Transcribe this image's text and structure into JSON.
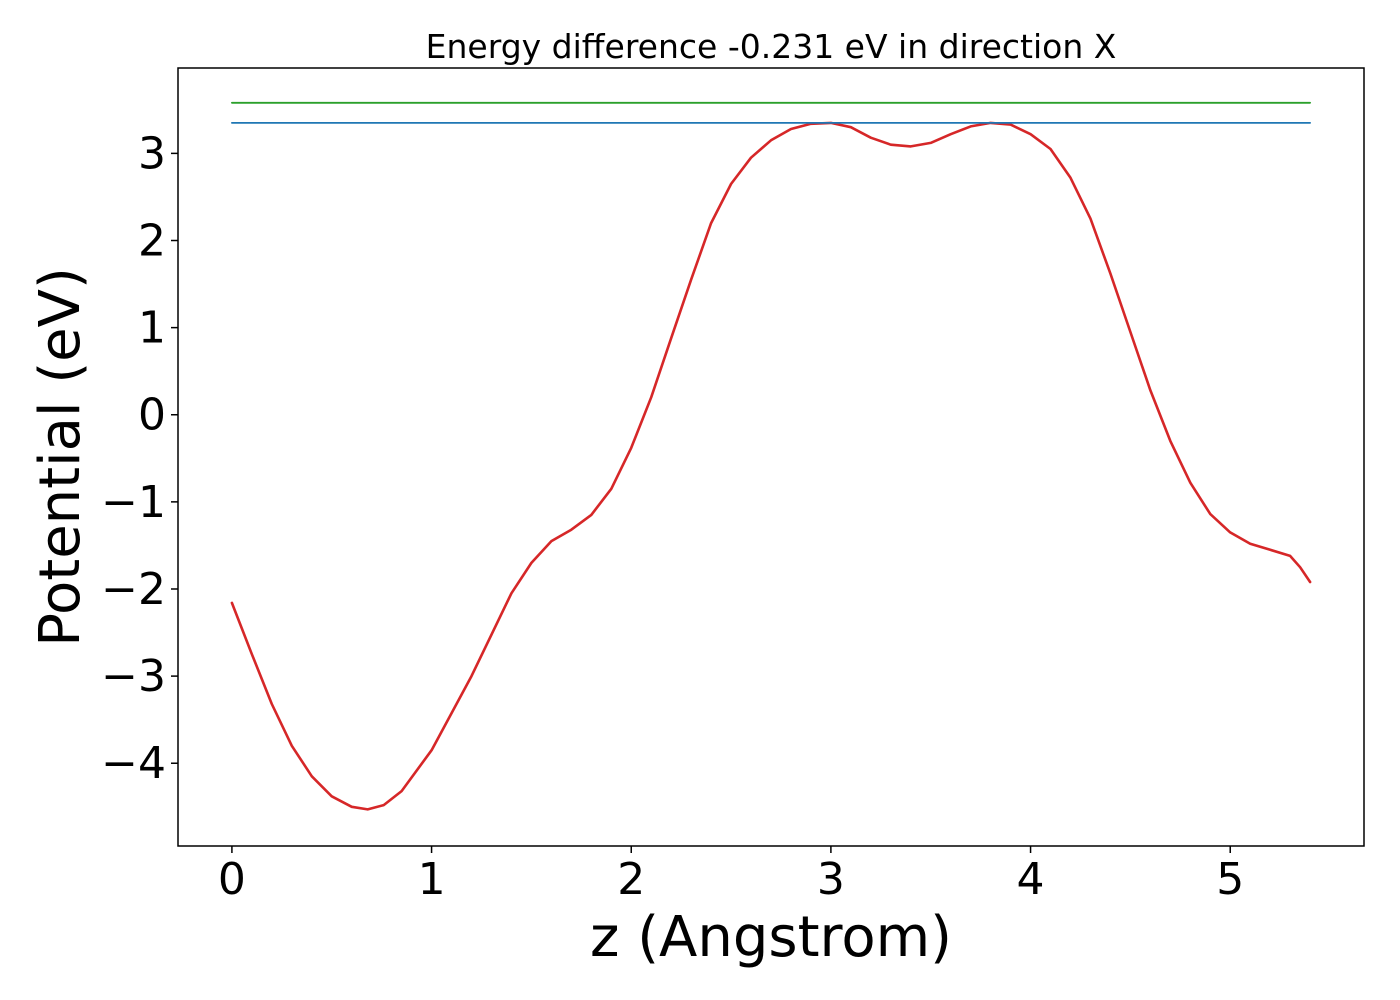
{
  "chart_data": {
    "type": "line",
    "title": "Energy difference -0.231 eV in direction X",
    "xlabel": "z (Angstrom)",
    "ylabel": "Potential (eV)",
    "xlim": [
      -0.27,
      5.67
    ],
    "ylim": [
      -4.95,
      3.98
    ],
    "xticks": [
      0,
      1,
      2,
      3,
      4,
      5
    ],
    "yticks": [
      -4,
      -3,
      -2,
      -1,
      0,
      1,
      2,
      3
    ],
    "grid": false,
    "legend": "none",
    "series": [
      {
        "color": "#d62728",
        "x": [
          0.0,
          0.1,
          0.2,
          0.3,
          0.4,
          0.5,
          0.6,
          0.68,
          0.76,
          0.85,
          1.0,
          1.2,
          1.4,
          1.5,
          1.6,
          1.7,
          1.8,
          1.9,
          2.0,
          2.1,
          2.2,
          2.3,
          2.4,
          2.5,
          2.6,
          2.7,
          2.8,
          2.9,
          3.0,
          3.1,
          3.2,
          3.3,
          3.4,
          3.5,
          3.6,
          3.7,
          3.8,
          3.9,
          4.0,
          4.1,
          4.2,
          4.3,
          4.4,
          4.5,
          4.6,
          4.7,
          4.8,
          4.9,
          5.0,
          5.1,
          5.2,
          5.3,
          5.35,
          5.4
        ],
        "y": [
          -2.16,
          -2.75,
          -3.32,
          -3.8,
          -4.15,
          -4.38,
          -4.5,
          -4.53,
          -4.48,
          -4.32,
          -3.85,
          -3.0,
          -2.05,
          -1.7,
          -1.45,
          -1.32,
          -1.15,
          -0.85,
          -0.38,
          0.2,
          0.88,
          1.55,
          2.2,
          2.65,
          2.95,
          3.15,
          3.28,
          3.34,
          3.35,
          3.3,
          3.18,
          3.1,
          3.08,
          3.12,
          3.22,
          3.31,
          3.35,
          3.33,
          3.22,
          3.05,
          2.72,
          2.25,
          1.62,
          0.95,
          0.28,
          -0.3,
          -0.78,
          -1.14,
          -1.35,
          -1.48,
          -1.55,
          -1.62,
          -1.75,
          -1.92
        ]
      },
      {
        "color": "#1f77b4",
        "x": [
          0.0,
          5.4
        ],
        "y": [
          3.35,
          3.35
        ]
      },
      {
        "color": "#2ca02c",
        "x": [
          0.0,
          5.4
        ],
        "y": [
          3.58,
          3.58
        ]
      }
    ]
  }
}
